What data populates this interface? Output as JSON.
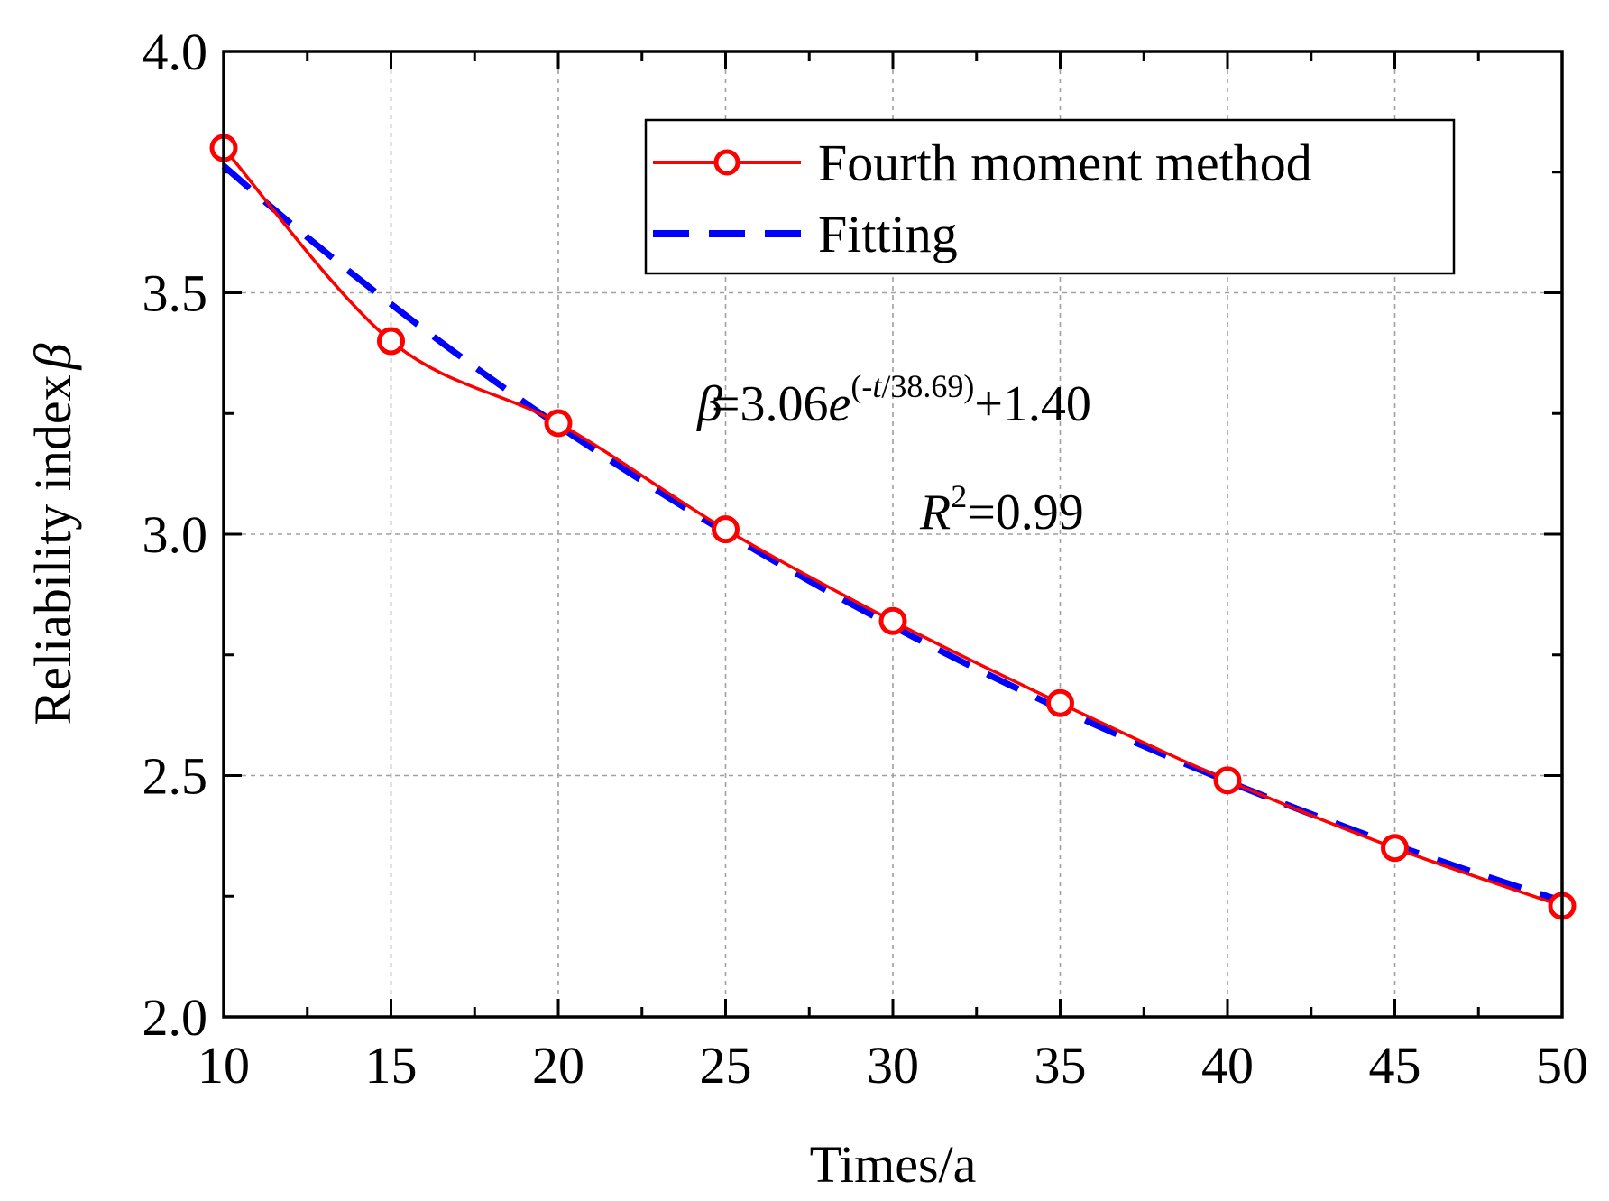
{
  "chart_data": {
    "type": "line",
    "xlabel": "Times/a",
    "ylabel": "Reliability index",
    "ylabel_symbol": "β",
    "xlim": [
      10,
      50
    ],
    "ylim": [
      2.0,
      4.0
    ],
    "xticks": [
      10,
      15,
      20,
      25,
      30,
      35,
      40,
      45,
      50
    ],
    "yticks": [
      2.0,
      2.5,
      3.0,
      3.5,
      4.0
    ],
    "ytick_labels": [
      "2.0",
      "2.5",
      "3.0",
      "3.5",
      "4.0"
    ],
    "grid": true,
    "legend_position": "top-right",
    "series": [
      {
        "name": "Fourth moment method",
        "color": "#ff0000",
        "style": "solid",
        "marker": "open-circle",
        "x": [
          10,
          15,
          20,
          25,
          30,
          35,
          40,
          45,
          50
        ],
        "values": [
          3.8,
          3.4,
          3.23,
          3.01,
          2.82,
          2.65,
          2.49,
          2.35,
          2.23
        ]
      },
      {
        "name": "Fitting",
        "color": "#0000ff",
        "style": "dashed",
        "marker": "none",
        "function": "3.06*exp(-t/38.69)+1.40"
      }
    ],
    "annotations": {
      "equation": {
        "beta": "β",
        "main": "=3.06",
        "e": "e",
        "exp_open": "(-",
        "exp_t": "t",
        "exp_rest": "/38.69)",
        "tail": "+1.40"
      },
      "r2": {
        "R": "R",
        "sup": "2",
        "value": "=0.99"
      }
    }
  }
}
